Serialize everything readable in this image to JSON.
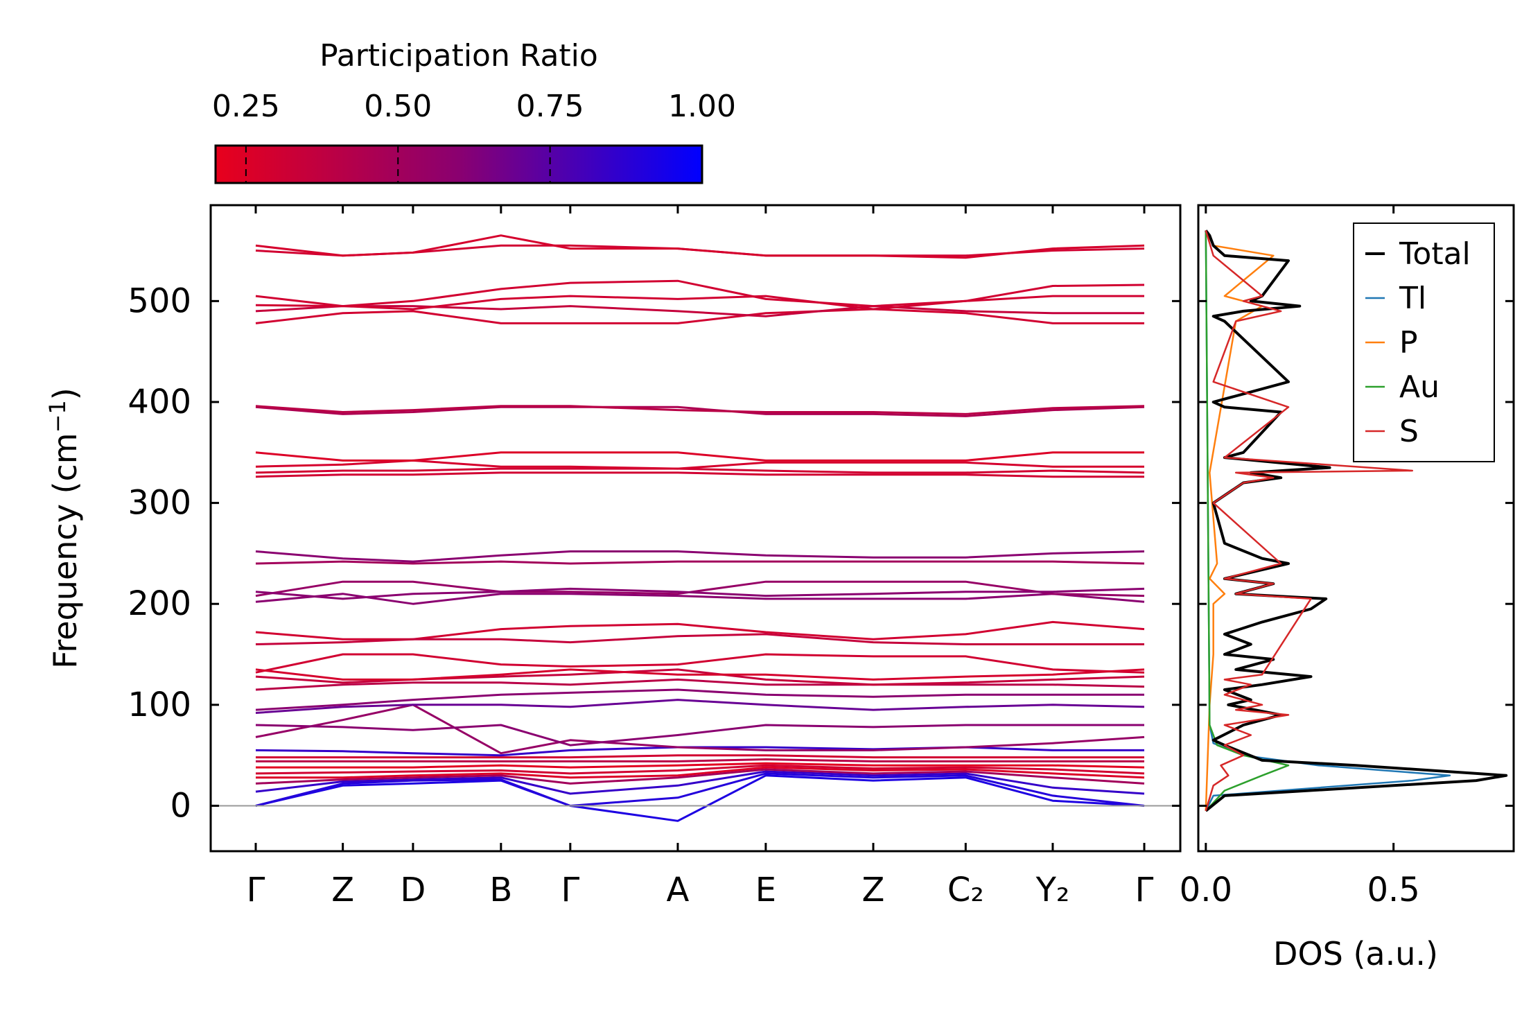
{
  "colorbar": {
    "label": "Participation Ratio",
    "range": [
      0.2,
      1.0
    ],
    "ticks": [
      0.25,
      0.5,
      0.75,
      1.0
    ],
    "tick_labels": [
      "0.25",
      "0.50",
      "0.75",
      "1.00"
    ],
    "colors": {
      "low": "#e8001c",
      "mid": "#8a0070",
      "high": "#0000ff"
    }
  },
  "chart_data": [
    {
      "type": "line",
      "title": "",
      "xlabel": "",
      "ylabel": "Frequency (cm⁻¹)",
      "ylim": [
        -45,
        595
      ],
      "yticks": [
        0,
        100,
        200,
        300,
        400,
        500
      ],
      "ytick_labels": [
        "0",
        "100",
        "200",
        "300",
        "400",
        "500"
      ],
      "kpath": [
        "Γ",
        "Z",
        "D",
        "B",
        "Γ",
        "A",
        "E",
        "Z",
        "C₂",
        "Y₂",
        "Γ"
      ],
      "kpath_positions": [
        0,
        0.098,
        0.177,
        0.276,
        0.354,
        0.475,
        0.574,
        0.695,
        0.799,
        0.897,
        1.0
      ],
      "zero_line": 0,
      "bands": [
        {
          "values": [
            0,
            20,
            22,
            25,
            0,
            -15,
            30,
            25,
            28,
            5,
            0
          ],
          "pr": 0.92
        },
        {
          "values": [
            0,
            22,
            25,
            26,
            0,
            8,
            32,
            28,
            30,
            10,
            0
          ],
          "pr": 0.9
        },
        {
          "values": [
            14,
            24,
            26,
            28,
            12,
            20,
            34,
            30,
            32,
            18,
            12
          ],
          "pr": 0.85
        },
        {
          "values": [
            22,
            26,
            28,
            30,
            22,
            28,
            36,
            32,
            34,
            28,
            22
          ],
          "pr": 0.5
        },
        {
          "values": [
            28,
            28,
            30,
            32,
            28,
            30,
            38,
            35,
            36,
            32,
            28
          ],
          "pr": 0.25
        },
        {
          "values": [
            32,
            33,
            34,
            35,
            32,
            35,
            40,
            37,
            38,
            36,
            32
          ],
          "pr": 0.3
        },
        {
          "values": [
            38,
            38,
            38,
            40,
            38,
            40,
            42,
            40,
            40,
            40,
            38
          ],
          "pr": 0.22
        },
        {
          "values": [
            44,
            44,
            44,
            44,
            44,
            44,
            46,
            44,
            44,
            44,
            44
          ],
          "pr": 0.4
        },
        {
          "values": [
            48,
            48,
            48,
            48,
            48,
            50,
            50,
            48,
            48,
            48,
            48
          ],
          "pr": 0.3
        },
        {
          "values": [
            55,
            54,
            52,
            50,
            55,
            58,
            58,
            56,
            58,
            55,
            55
          ],
          "pr": 0.85
        },
        {
          "values": [
            68,
            85,
            100,
            52,
            65,
            58,
            55,
            55,
            58,
            62,
            68
          ],
          "pr": 0.55
        },
        {
          "values": [
            80,
            78,
            75,
            80,
            60,
            70,
            80,
            78,
            80,
            80,
            80
          ],
          "pr": 0.6
        },
        {
          "values": [
            92,
            98,
            100,
            100,
            98,
            105,
            100,
            95,
            98,
            100,
            98
          ],
          "pr": 0.7
        },
        {
          "values": [
            95,
            100,
            105,
            110,
            112,
            115,
            110,
            108,
            110,
            110,
            110
          ],
          "pr": 0.6
        },
        {
          "values": [
            115,
            120,
            122,
            122,
            120,
            125,
            120,
            120,
            120,
            120,
            118
          ],
          "pr": 0.4
        },
        {
          "values": [
            128,
            122,
            125,
            128,
            130,
            135,
            125,
            120,
            122,
            125,
            128
          ],
          "pr": 0.35
        },
        {
          "values": [
            132,
            150,
            150,
            140,
            138,
            140,
            150,
            148,
            148,
            135,
            132
          ],
          "pr": 0.3
        },
        {
          "values": [
            135,
            125,
            125,
            130,
            135,
            130,
            130,
            125,
            128,
            130,
            135
          ],
          "pr": 0.28
        },
        {
          "values": [
            172,
            165,
            165,
            175,
            178,
            180,
            172,
            165,
            170,
            182,
            175
          ],
          "pr": 0.3
        },
        {
          "values": [
            160,
            162,
            165,
            165,
            162,
            168,
            170,
            162,
            160,
            160,
            160
          ],
          "pr": 0.35
        },
        {
          "values": [
            202,
            210,
            200,
            210,
            210,
            208,
            205,
            205,
            205,
            210,
            202
          ],
          "pr": 0.6
        },
        {
          "values": [
            208,
            222,
            222,
            212,
            212,
            210,
            222,
            222,
            222,
            210,
            208
          ],
          "pr": 0.55
        },
        {
          "values": [
            212,
            205,
            210,
            212,
            215,
            212,
            208,
            210,
            212,
            212,
            215
          ],
          "pr": 0.6
        },
        {
          "values": [
            240,
            242,
            240,
            242,
            240,
            242,
            242,
            242,
            242,
            242,
            240
          ],
          "pr": 0.5
        },
        {
          "values": [
            252,
            245,
            242,
            248,
            252,
            252,
            248,
            246,
            246,
            250,
            252
          ],
          "pr": 0.6
        },
        {
          "values": [
            326,
            328,
            328,
            330,
            330,
            330,
            328,
            328,
            328,
            326,
            326
          ],
          "pr": 0.3
        },
        {
          "values": [
            330,
            332,
            332,
            334,
            334,
            334,
            332,
            330,
            330,
            332,
            330
          ],
          "pr": 0.3
        },
        {
          "values": [
            336,
            338,
            342,
            336,
            336,
            334,
            340,
            340,
            340,
            336,
            336
          ],
          "pr": 0.28
        },
        {
          "values": [
            350,
            342,
            342,
            350,
            350,
            350,
            342,
            342,
            342,
            350,
            350
          ],
          "pr": 0.25
        },
        {
          "values": [
            395,
            388,
            390,
            395,
            395,
            395,
            388,
            388,
            386,
            392,
            395
          ],
          "pr": 0.45
        },
        {
          "values": [
            396,
            390,
            392,
            396,
            396,
            392,
            390,
            390,
            388,
            394,
            396
          ],
          "pr": 0.4
        },
        {
          "values": [
            478,
            488,
            490,
            478,
            478,
            478,
            488,
            492,
            488,
            478,
            478
          ],
          "pr": 0.3
        },
        {
          "values": [
            490,
            495,
            495,
            492,
            495,
            490,
            485,
            495,
            490,
            488,
            488
          ],
          "pr": 0.35
        },
        {
          "values": [
            496,
            495,
            492,
            502,
            505,
            502,
            505,
            492,
            500,
            505,
            505
          ],
          "pr": 0.3
        },
        {
          "values": [
            505,
            495,
            500,
            512,
            518,
            520,
            502,
            495,
            500,
            515,
            516
          ],
          "pr": 0.3
        },
        {
          "values": [
            550,
            545,
            548,
            555,
            555,
            552,
            545,
            545,
            545,
            550,
            552
          ],
          "pr": 0.3
        },
        {
          "values": [
            555,
            545,
            548,
            565,
            552,
            552,
            545,
            545,
            543,
            552,
            555
          ],
          "pr": 0.28
        }
      ]
    },
    {
      "type": "line",
      "title": "",
      "xlabel": "DOS (a.u.)",
      "ylabel": "",
      "xlim": [
        -0.02,
        0.82
      ],
      "xticks": [
        0.0,
        0.5
      ],
      "xtick_labels": [
        "0.0",
        "0.5"
      ],
      "legend_position": "top-right",
      "series": [
        {
          "name": "Total",
          "color": "#000000",
          "x": [
            0.0,
            0.05,
            0.72,
            0.8,
            0.4,
            0.15,
            0.05,
            0.02,
            0.1,
            0.2,
            0.06,
            0.12,
            0.05,
            0.15,
            0.28,
            0.08,
            0.18,
            0.05,
            0.12,
            0.05,
            0.15,
            0.28,
            0.32,
            0.08,
            0.18,
            0.05,
            0.22,
            0.15,
            0.05,
            0.02,
            0.1,
            0.2,
            0.12,
            0.33,
            0.05,
            0.1,
            0.2,
            0.05,
            0.02,
            0.22,
            0.05,
            0.02,
            0.1,
            0.25,
            0.12,
            0.15,
            0.22,
            0.05,
            0.02,
            0.01,
            0.0
          ],
          "y": [
            -5,
            10,
            25,
            30,
            40,
            45,
            60,
            65,
            80,
            90,
            100,
            105,
            115,
            120,
            128,
            135,
            145,
            150,
            160,
            170,
            182,
            195,
            205,
            210,
            220,
            225,
            240,
            245,
            260,
            300,
            320,
            325,
            330,
            335,
            345,
            350,
            390,
            395,
            400,
            420,
            480,
            485,
            490,
            495,
            500,
            505,
            540,
            545,
            555,
            565,
            570
          ]
        },
        {
          "name": "Tl",
          "color": "#1f77b4",
          "x": [
            0.0,
            0.02,
            0.55,
            0.65,
            0.3,
            0.1,
            0.02,
            0.01,
            0.0
          ],
          "y": [
            -5,
            10,
            25,
            30,
            40,
            50,
            62,
            80,
            570
          ]
        },
        {
          "name": "P",
          "color": "#ff7f0e",
          "x": [
            0.0,
            0.01,
            0.02,
            0.02,
            0.05,
            0.01,
            0.03,
            0.01,
            0.08,
            0.15,
            0.05,
            0.18,
            0.02,
            0.0
          ],
          "y": [
            -5,
            100,
            150,
            200,
            210,
            225,
            240,
            330,
            480,
            495,
            505,
            545,
            555,
            570
          ]
        },
        {
          "name": "Au",
          "color": "#2ca02c",
          "x": [
            0.0,
            0.05,
            0.15,
            0.22,
            0.1,
            0.03,
            0.01,
            0.0
          ],
          "y": [
            -5,
            15,
            30,
            40,
            50,
            60,
            80,
            570
          ]
        },
        {
          "name": "S",
          "color": "#d62728",
          "x": [
            0.0,
            0.02,
            0.06,
            0.04,
            0.1,
            0.05,
            0.12,
            0.05,
            0.22,
            0.08,
            0.15,
            0.05,
            0.12,
            0.05,
            0.15,
            0.28,
            0.08,
            0.18,
            0.05,
            0.2,
            0.02,
            0.1,
            0.18,
            0.08,
            0.55,
            0.05,
            0.22,
            0.02,
            0.08,
            0.2,
            0.1,
            0.15,
            0.02,
            0.0
          ],
          "y": [
            -5,
            20,
            30,
            40,
            50,
            60,
            70,
            80,
            90,
            95,
            100,
            110,
            120,
            125,
            130,
            205,
            210,
            220,
            225,
            240,
            300,
            320,
            325,
            330,
            332,
            345,
            395,
            420,
            480,
            490,
            500,
            505,
            545,
            570
          ]
        }
      ]
    }
  ]
}
